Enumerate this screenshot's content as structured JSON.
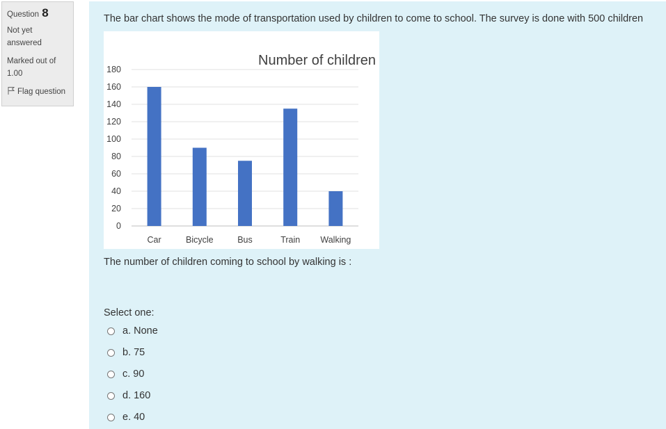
{
  "info": {
    "question_label": "Question",
    "question_number": "8",
    "state": "Not yet answered",
    "grade": "Marked out of 1.00",
    "flag_label": "Flag question"
  },
  "question": {
    "text": "The bar chart shows the mode of transportation used by children to come to school. The survey is done with 500 children",
    "prompt": "The number of children coming to school by walking is :",
    "select_label": "Select one:",
    "options": [
      {
        "label": "a. None"
      },
      {
        "label": "b. 75"
      },
      {
        "label": "c. 90"
      },
      {
        "label": "d. 160"
      },
      {
        "label": "e. 40"
      }
    ]
  },
  "colors": {
    "bar": "#4472c4",
    "content_bg": "#def2f8",
    "info_bg": "#ececec"
  },
  "chart_data": {
    "type": "bar",
    "title": "Number of children",
    "categories": [
      "Car",
      "Bicycle",
      "Bus",
      "Train",
      "Walking"
    ],
    "values": [
      160,
      90,
      75,
      135,
      40
    ],
    "yticks": [
      0,
      20,
      40,
      60,
      80,
      100,
      120,
      140,
      160,
      180
    ],
    "ylim": [
      0,
      180
    ],
    "xlabel": "",
    "ylabel": "",
    "grid": true,
    "legend": "none"
  }
}
